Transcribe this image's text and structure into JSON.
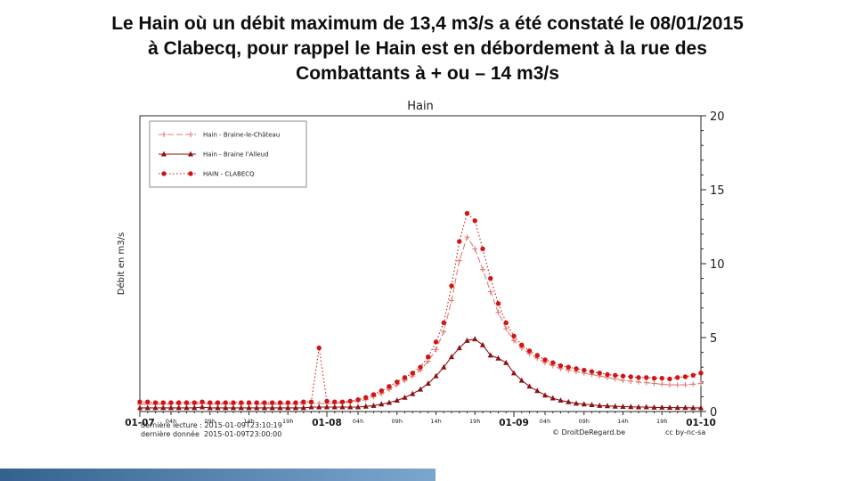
{
  "heading": {
    "lines": [
      "Le Hain où un débit maximum de 13,4 m3/s a été constaté le 08/01/2015",
      "à Clabecq, pour rappel le Hain est en débordement à la rue des",
      "Combattants à + ou – 14 m3/s"
    ]
  },
  "footer": {
    "last_reading": "dernière lecture : 2015-01-09T23:10:19",
    "last_data": "dernière donnée  2015-01-09T23:00:00",
    "copyright": "© DroitDeRegard.be",
    "license": "cc by-nc-sa"
  },
  "colors": {
    "axis": "#262626",
    "accent_bar": "#4f81bd",
    "background": "#ffffff"
  },
  "chart_data": {
    "type": "line",
    "title": "Hain",
    "ylabel": "Débit en m3/s",
    "ylim": [
      0,
      20
    ],
    "yticks": [
      0,
      5,
      10,
      15,
      20
    ],
    "x_description": "hours since 01-07 00:00, one point per hour",
    "x_range_hours": [
      0,
      72
    ],
    "hours_per_point": 1,
    "x_days": [
      "01-07",
      "01-08",
      "01-09",
      "01-10"
    ],
    "hour_labels": [
      "04h",
      "09h",
      "14h",
      "19h"
    ],
    "hour_offsets": [
      4,
      9,
      14,
      19
    ],
    "grid": false,
    "legend_position": "top-left",
    "series": [
      {
        "name": "Hain - Braine-le-Château",
        "color": "#e07c74",
        "marker": "plus",
        "line": "dash",
        "values": [
          0.5,
          0.5,
          0.5,
          0.5,
          0.5,
          0.5,
          0.5,
          0.5,
          0.55,
          0.5,
          0.5,
          0.5,
          0.5,
          0.5,
          0.5,
          0.5,
          0.5,
          0.5,
          0.5,
          0.5,
          0.5,
          0.5,
          0.55,
          0.55,
          0.55,
          0.55,
          0.6,
          0.65,
          0.7,
          0.8,
          1.0,
          1.2,
          1.5,
          1.8,
          2.1,
          2.4,
          2.8,
          3.4,
          4.2,
          5.4,
          7.5,
          10.2,
          11.8,
          11.0,
          9.6,
          8.1,
          6.7,
          5.6,
          4.8,
          4.3,
          3.9,
          3.6,
          3.3,
          3.1,
          2.9,
          2.8,
          2.7,
          2.6,
          2.5,
          2.4,
          2.3,
          2.2,
          2.1,
          2.05,
          2.0,
          1.95,
          1.9,
          1.85,
          1.8,
          1.8,
          1.8,
          1.85,
          1.9
        ]
      },
      {
        "name": "Hain - Braine l'Alleud",
        "color": "#8c1212",
        "marker": "triangle",
        "line": "solid",
        "values": [
          0.25,
          0.25,
          0.25,
          0.25,
          0.25,
          0.25,
          0.25,
          0.25,
          0.3,
          0.25,
          0.25,
          0.25,
          0.25,
          0.25,
          0.25,
          0.25,
          0.25,
          0.25,
          0.25,
          0.25,
          0.25,
          0.25,
          0.3,
          0.3,
          0.3,
          0.3,
          0.3,
          0.3,
          0.3,
          0.35,
          0.4,
          0.5,
          0.6,
          0.75,
          0.95,
          1.2,
          1.5,
          1.9,
          2.4,
          3.0,
          3.7,
          4.3,
          4.8,
          4.9,
          4.5,
          3.8,
          3.6,
          3.3,
          2.6,
          2.1,
          1.7,
          1.4,
          1.1,
          0.9,
          0.75,
          0.65,
          0.55,
          0.5,
          0.45,
          0.4,
          0.38,
          0.35,
          0.33,
          0.32,
          0.3,
          0.3,
          0.28,
          0.28,
          0.27,
          0.26,
          0.26,
          0.25,
          0.25
        ]
      },
      {
        "name": "HAIN - CLABECQ",
        "color": "#d21414",
        "marker": "circle",
        "line": "dot",
        "values": [
          0.65,
          0.65,
          0.6,
          0.6,
          0.6,
          0.6,
          0.6,
          0.6,
          0.65,
          0.6,
          0.6,
          0.6,
          0.6,
          0.6,
          0.6,
          0.6,
          0.6,
          0.6,
          0.6,
          0.6,
          0.6,
          0.65,
          0.65,
          4.3,
          0.7,
          0.65,
          0.65,
          0.7,
          0.8,
          0.95,
          1.15,
          1.4,
          1.7,
          2.0,
          2.3,
          2.6,
          3.0,
          3.7,
          4.7,
          6.0,
          8.5,
          11.5,
          13.4,
          12.9,
          11.0,
          9.0,
          7.3,
          6.0,
          5.1,
          4.5,
          4.1,
          3.8,
          3.5,
          3.3,
          3.1,
          3.0,
          2.9,
          2.8,
          2.7,
          2.6,
          2.5,
          2.45,
          2.4,
          2.35,
          2.3,
          2.3,
          2.25,
          2.25,
          2.2,
          2.3,
          2.35,
          2.45,
          2.6
        ]
      }
    ]
  }
}
